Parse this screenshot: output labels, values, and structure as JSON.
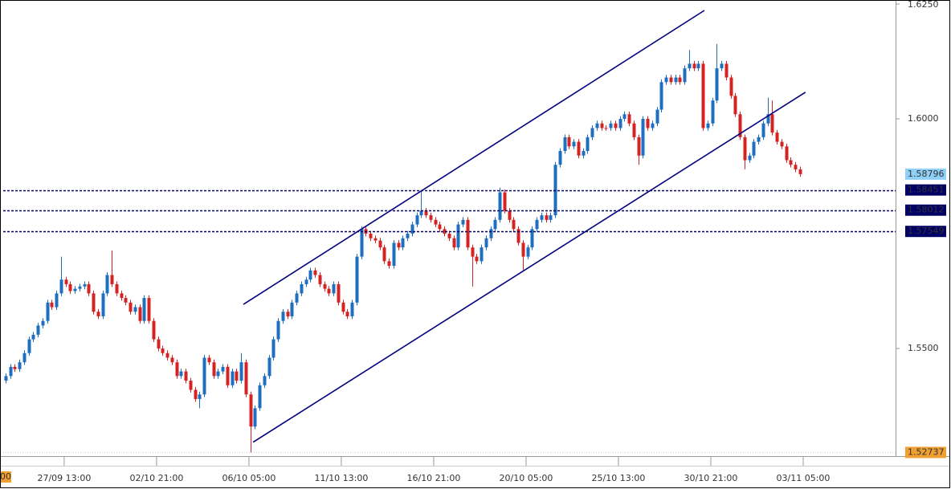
{
  "chart_data": {
    "type": "candlestick",
    "up_color": "#1f6fc0",
    "down_color": "#d42323",
    "xlim": [
      -0.5,
      192.7
    ],
    "ylim": [
      1.52675,
      1.625
    ],
    "yticks": [
      {
        "value": 1.625,
        "label": "1.6250"
      },
      {
        "value": 1.6,
        "label": "1.6000"
      },
      {
        "value": 1.55,
        "label": "1.5500"
      }
    ],
    "xticks": [
      {
        "value": 12.7,
        "label": "27/09 13:00"
      },
      {
        "value": 32.7,
        "label": "02/10 21:00"
      },
      {
        "value": 52.7,
        "label": "06/10 05:00"
      },
      {
        "value": 72.7,
        "label": "11/10 13:00"
      },
      {
        "value": 92.7,
        "label": "16/10 21:00"
      },
      {
        "value": 112.7,
        "label": "20/10 05:00"
      },
      {
        "value": 132.7,
        "label": "25/10 13:00"
      },
      {
        "value": 152.7,
        "label": "30/10 21:00"
      },
      {
        "value": 172.7,
        "label": "03/11 05:00"
      }
    ],
    "cursor_label": "00",
    "levels": [
      1.58451,
      1.58012,
      1.57549
    ],
    "level_color": "#000066",
    "last_price": 1.58796,
    "low_price": 1.52737,
    "trendlines": [
      {
        "x": [
          51.5,
          151.3
        ],
        "y": [
          1.5596,
          1.6236
        ]
      },
      {
        "x": [
          53.6,
          173.2
        ],
        "y": [
          1.5296,
          1.6058
        ]
      }
    ],
    "trendline_color": "#000080",
    "open": [
      1.543,
      1.544,
      1.546,
      1.5455,
      1.547,
      1.549,
      1.552,
      1.553,
      1.555,
      1.556,
      1.56,
      1.559,
      1.562,
      1.565,
      1.564,
      1.5625,
      1.563,
      1.5635,
      1.564,
      1.562,
      1.558,
      1.557,
      1.562,
      1.566,
      1.564,
      1.562,
      1.561,
      1.56,
      1.558,
      1.559,
      1.556,
      1.561,
      1.556,
      1.552,
      1.55,
      1.549,
      1.548,
      1.547,
      1.544,
      1.545,
      1.543,
      1.541,
      1.539,
      1.54,
      1.548,
      1.547,
      1.544,
      1.545,
      1.546,
      1.542,
      1.545,
      1.543,
      1.547,
      1.54,
      1.533,
      1.537,
      1.542,
      1.544,
      1.548,
      1.552,
      1.556,
      1.558,
      1.557,
      1.56,
      1.562,
      1.564,
      1.565,
      1.567,
      1.566,
      1.564,
      1.563,
      1.562,
      1.564,
      1.56,
      1.558,
      1.557,
      1.56,
      1.57,
      1.576,
      1.575,
      1.574,
      1.5735,
      1.572,
      1.569,
      1.568,
      1.573,
      1.572,
      1.574,
      1.575,
      1.577,
      1.579,
      1.58,
      1.579,
      1.578,
      1.577,
      1.576,
      1.575,
      1.574,
      1.572,
      1.577,
      1.578,
      1.572,
      1.57,
      1.569,
      1.572,
      1.574,
      1.576,
      1.578,
      1.584,
      1.58,
      1.578,
      1.576,
      1.573,
      1.57,
      1.572,
      1.576,
      1.578,
      1.579,
      1.578,
      1.579,
      1.59,
      1.593,
      1.596,
      1.594,
      1.595,
      1.592,
      1.593,
      1.596,
      1.598,
      1.599,
      1.598,
      1.598,
      1.599,
      1.598,
      1.6,
      1.601,
      1.599,
      1.596,
      1.592,
      1.6,
      1.598,
      1.599,
      1.602,
      1.608,
      1.609,
      1.608,
      1.609,
      1.608,
      1.611,
      1.612,
      1.611,
      1.612,
      1.598,
      1.599,
      1.604,
      1.611,
      1.612,
      1.609,
      1.605,
      1.601,
      1.596,
      1.591,
      1.592,
      1.595,
      1.596,
      1.599,
      1.601,
      1.597,
      1.595,
      1.594,
      1.591,
      1.59,
      1.589
    ],
    "high": [
      1.5446,
      1.5466,
      1.5466,
      1.5476,
      1.5496,
      1.5526,
      1.5536,
      1.5556,
      1.5566,
      1.5606,
      1.5606,
      1.5626,
      1.57,
      1.5656,
      1.5646,
      1.5636,
      1.5641,
      1.5646,
      1.5646,
      1.5626,
      1.5586,
      1.5626,
      1.5666,
      1.5713,
      1.5646,
      1.5626,
      1.5616,
      1.5606,
      1.5596,
      1.5596,
      1.5616,
      1.5616,
      1.5566,
      1.5526,
      1.5506,
      1.5496,
      1.5486,
      1.5476,
      1.5456,
      1.5456,
      1.5436,
      1.5416,
      1.5406,
      1.5486,
      1.5486,
      1.5476,
      1.5456,
      1.5466,
      1.5466,
      1.5456,
      1.5456,
      1.549,
      1.5476,
      1.5406,
      1.5376,
      1.5426,
      1.5446,
      1.5486,
      1.5526,
      1.5566,
      1.5586,
      1.5586,
      1.5606,
      1.5626,
      1.5646,
      1.5656,
      1.5676,
      1.5676,
      1.5666,
      1.5646,
      1.5636,
      1.5646,
      1.5646,
      1.5606,
      1.5586,
      1.5606,
      1.5706,
      1.5766,
      1.5766,
      1.5756,
      1.5746,
      1.5741,
      1.5726,
      1.5696,
      1.5736,
      1.5736,
      1.5746,
      1.5756,
      1.5776,
      1.5796,
      1.5845,
      1.5806,
      1.5796,
      1.5786,
      1.5776,
      1.5766,
      1.5756,
      1.5746,
      1.5776,
      1.5786,
      1.5786,
      1.5726,
      1.5706,
      1.5726,
      1.5746,
      1.5766,
      1.5786,
      1.585,
      1.5846,
      1.5806,
      1.5786,
      1.5766,
      1.5736,
      1.5726,
      1.5766,
      1.5786,
      1.5796,
      1.5796,
      1.5796,
      1.5906,
      1.5936,
      1.5966,
      1.5966,
      1.5956,
      1.5956,
      1.5936,
      1.5966,
      1.5986,
      1.5996,
      1.5996,
      1.5986,
      1.5996,
      1.5996,
      1.6006,
      1.6016,
      1.6016,
      1.5996,
      1.5966,
      1.6006,
      1.6006,
      1.5996,
      1.6026,
      1.6086,
      1.6096,
      1.6096,
      1.6096,
      1.6096,
      1.6116,
      1.615,
      1.6126,
      1.6126,
      1.6126,
      1.5996,
      1.6046,
      1.6163,
      1.6126,
      1.6126,
      1.6096,
      1.6056,
      1.6016,
      1.5966,
      1.5926,
      1.5956,
      1.5966,
      1.5996,
      1.6046,
      1.604,
      1.5976,
      1.5956,
      1.5946,
      1.5916,
      1.5906,
      1.5896
    ],
    "low": [
      1.5424,
      1.5434,
      1.5449,
      1.5449,
      1.5464,
      1.5484,
      1.5514,
      1.5524,
      1.5544,
      1.5554,
      1.5584,
      1.5584,
      1.5614,
      1.5634,
      1.5619,
      1.5619,
      1.5624,
      1.5629,
      1.5614,
      1.5574,
      1.5564,
      1.5564,
      1.5614,
      1.5634,
      1.5614,
      1.5604,
      1.5594,
      1.5574,
      1.5574,
      1.5554,
      1.5554,
      1.5554,
      1.5514,
      1.5494,
      1.5484,
      1.5474,
      1.5464,
      1.5434,
      1.5434,
      1.5424,
      1.5404,
      1.5384,
      1.537,
      1.5394,
      1.5464,
      1.5434,
      1.5434,
      1.5444,
      1.5414,
      1.5414,
      1.5424,
      1.5424,
      1.5394,
      1.52737,
      1.5324,
      1.5364,
      1.5414,
      1.5434,
      1.5474,
      1.5514,
      1.5554,
      1.5564,
      1.5564,
      1.5594,
      1.5614,
      1.5634,
      1.5644,
      1.5654,
      1.5634,
      1.5624,
      1.5614,
      1.5614,
      1.5594,
      1.5574,
      1.5564,
      1.5564,
      1.5594,
      1.5694,
      1.5744,
      1.5734,
      1.5729,
      1.5714,
      1.5684,
      1.5674,
      1.5674,
      1.5714,
      1.5714,
      1.5734,
      1.5744,
      1.5764,
      1.5784,
      1.5784,
      1.5774,
      1.5764,
      1.5754,
      1.5744,
      1.5734,
      1.5714,
      1.5714,
      1.5764,
      1.5714,
      1.5635,
      1.5684,
      1.5684,
      1.5714,
      1.5734,
      1.5754,
      1.5774,
      1.5794,
      1.5774,
      1.5754,
      1.5724,
      1.567,
      1.5694,
      1.5714,
      1.5754,
      1.5774,
      1.5774,
      1.5774,
      1.5784,
      1.5894,
      1.5924,
      1.5934,
      1.5934,
      1.5914,
      1.5914,
      1.5924,
      1.5954,
      1.5974,
      1.5974,
      1.5974,
      1.5974,
      1.5974,
      1.5974,
      1.5994,
      1.5984,
      1.5954,
      1.59,
      1.5914,
      1.5974,
      1.5974,
      1.5984,
      1.6014,
      1.6074,
      1.6074,
      1.6074,
      1.6074,
      1.6074,
      1.6104,
      1.6104,
      1.6104,
      1.5974,
      1.5974,
      1.5984,
      1.6034,
      1.6104,
      1.6084,
      1.6044,
      1.6004,
      1.5954,
      1.589,
      1.5904,
      1.5914,
      1.5944,
      1.5954,
      1.5984,
      1.5964,
      1.5944,
      1.5934,
      1.5904,
      1.5894,
      1.5884,
      1.5874
    ],
    "close": [
      1.544,
      1.546,
      1.5455,
      1.547,
      1.549,
      1.552,
      1.553,
      1.555,
      1.556,
      1.56,
      1.559,
      1.562,
      1.565,
      1.564,
      1.5625,
      1.563,
      1.5635,
      1.564,
      1.562,
      1.558,
      1.557,
      1.562,
      1.566,
      1.564,
      1.562,
      1.561,
      1.56,
      1.558,
      1.559,
      1.556,
      1.561,
      1.556,
      1.552,
      1.55,
      1.549,
      1.548,
      1.547,
      1.544,
      1.545,
      1.543,
      1.541,
      1.539,
      1.54,
      1.548,
      1.547,
      1.544,
      1.545,
      1.546,
      1.542,
      1.545,
      1.543,
      1.547,
      1.54,
      1.533,
      1.537,
      1.542,
      1.544,
      1.548,
      1.552,
      1.556,
      1.558,
      1.557,
      1.56,
      1.562,
      1.564,
      1.565,
      1.567,
      1.566,
      1.564,
      1.563,
      1.562,
      1.564,
      1.56,
      1.558,
      1.557,
      1.56,
      1.57,
      1.576,
      1.575,
      1.574,
      1.5735,
      1.572,
      1.569,
      1.568,
      1.573,
      1.572,
      1.574,
      1.575,
      1.577,
      1.579,
      1.58,
      1.579,
      1.578,
      1.577,
      1.576,
      1.575,
      1.574,
      1.572,
      1.577,
      1.578,
      1.572,
      1.57,
      1.569,
      1.572,
      1.574,
      1.576,
      1.578,
      1.584,
      1.58,
      1.578,
      1.576,
      1.573,
      1.57,
      1.572,
      1.576,
      1.578,
      1.579,
      1.578,
      1.579,
      1.59,
      1.593,
      1.596,
      1.594,
      1.595,
      1.592,
      1.593,
      1.596,
      1.598,
      1.599,
      1.598,
      1.598,
      1.599,
      1.598,
      1.6,
      1.601,
      1.599,
      1.596,
      1.592,
      1.6,
      1.598,
      1.599,
      1.602,
      1.608,
      1.609,
      1.608,
      1.609,
      1.608,
      1.611,
      1.612,
      1.611,
      1.612,
      1.598,
      1.599,
      1.604,
      1.611,
      1.612,
      1.609,
      1.605,
      1.601,
      1.596,
      1.591,
      1.592,
      1.595,
      1.596,
      1.599,
      1.601,
      1.597,
      1.595,
      1.594,
      1.591,
      1.59,
      1.589,
      1.58796
    ]
  }
}
